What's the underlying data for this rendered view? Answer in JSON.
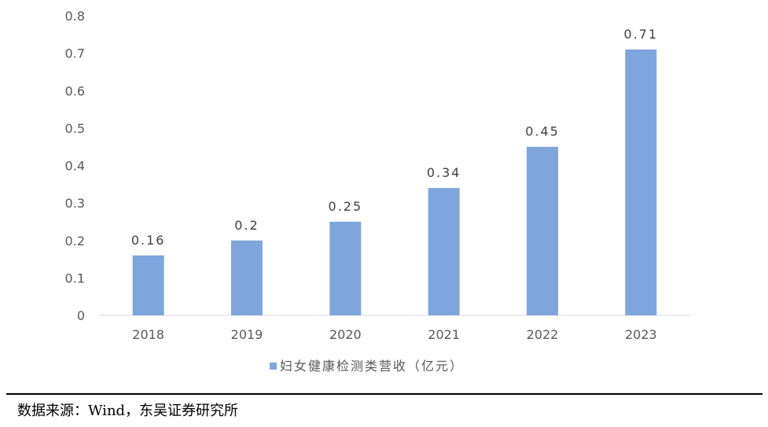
{
  "chart_data": {
    "type": "bar",
    "title": "",
    "categories": [
      "2018",
      "2019",
      "2020",
      "2021",
      "2022",
      "2023"
    ],
    "series": [
      {
        "name": "妇女健康检测类营收（亿元）",
        "values": [
          0.16,
          0.2,
          0.25,
          0.34,
          0.45,
          0.71
        ],
        "color": "#7FA6DC"
      }
    ],
    "data_labels": [
      "0.16",
      "0.2",
      "0.25",
      "0.34",
      "0.45",
      "0.71"
    ],
    "yticks": [
      "0",
      "0.1",
      "0.2",
      "0.3",
      "0.4",
      "0.5",
      "0.6",
      "0.7",
      "0.8"
    ],
    "ylim": [
      0,
      0.8
    ],
    "xlabel": "",
    "ylabel": "",
    "grid": false,
    "legend": "bottom-center"
  },
  "source": "数据来源：Wind，东吴证券研究所"
}
